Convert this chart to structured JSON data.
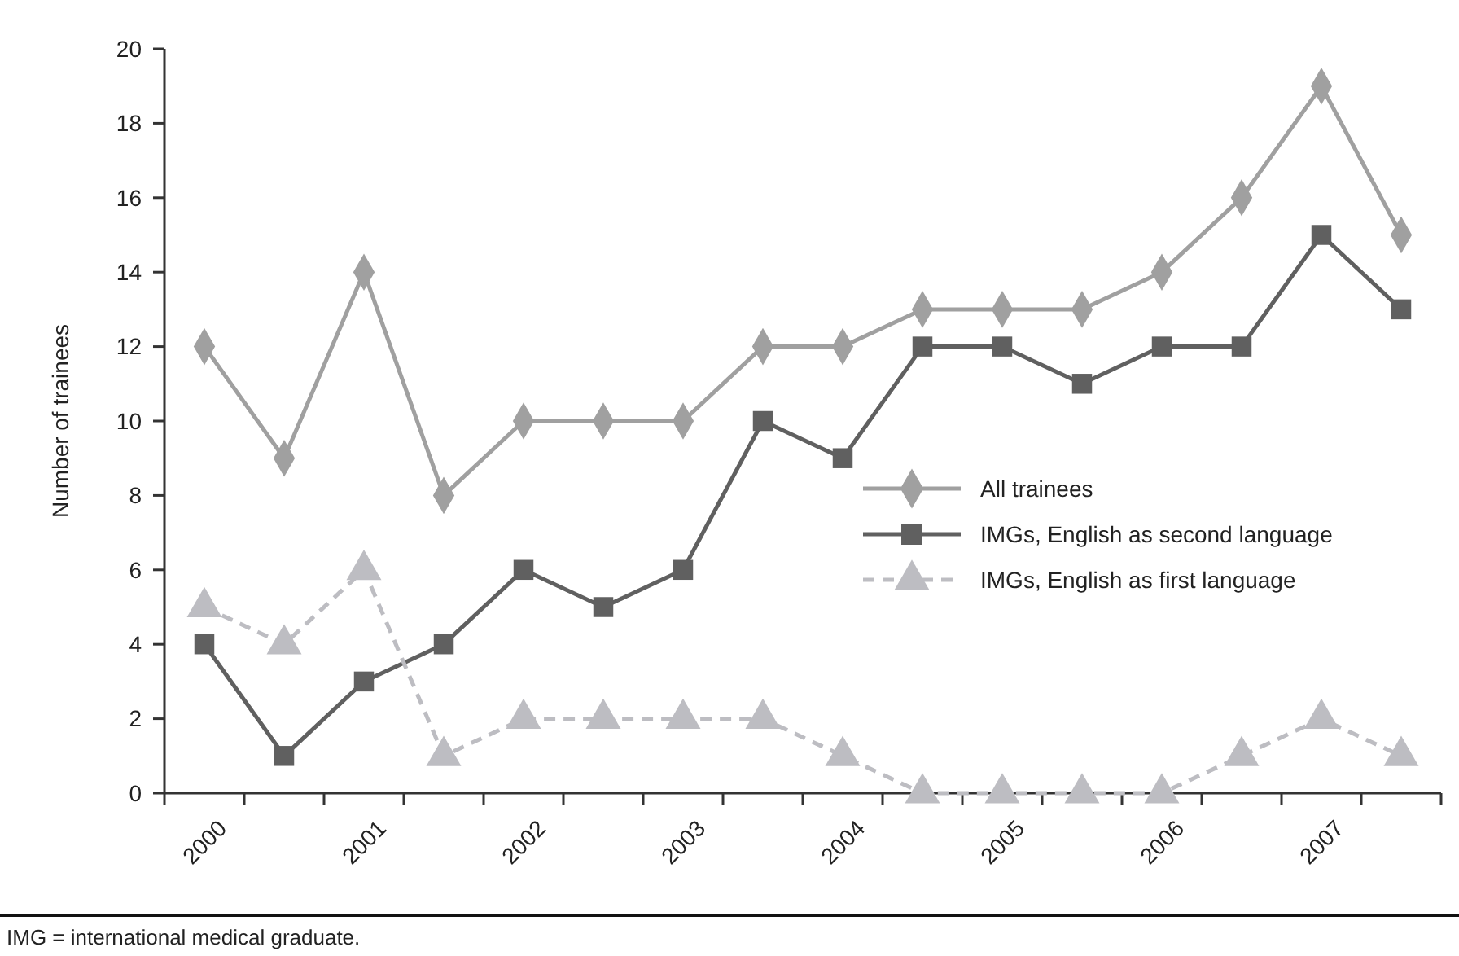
{
  "chart_data": {
    "type": "line",
    "ylabel": "Number of trainees",
    "categories": [
      "2000",
      null,
      "2001",
      null,
      "2002",
      null,
      "2003",
      null,
      "2004",
      null,
      "2005",
      null,
      "2006",
      null,
      "2007",
      null
    ],
    "series": [
      {
        "name": "All trainees",
        "color": "#a0a0a0",
        "marker": "diamond",
        "line_style": "solid",
        "values": [
          12,
          9,
          14,
          8,
          10,
          10,
          10,
          12,
          12,
          13,
          13,
          13,
          14,
          16,
          19,
          15
        ]
      },
      {
        "name": "IMGs, English as second language",
        "color": "#606060",
        "marker": "square",
        "line_style": "solid",
        "values": [
          4,
          1,
          3,
          4,
          6,
          5,
          6,
          10,
          9,
          12,
          12,
          11,
          12,
          12,
          15,
          13
        ]
      },
      {
        "name": "IMGs, English as first language",
        "color": "#bdbdc2",
        "marker": "triangle",
        "line_style": "dashed",
        "values": [
          5,
          4,
          6,
          1,
          2,
          2,
          2,
          2,
          1,
          0,
          0,
          0,
          0,
          1,
          2,
          1
        ]
      }
    ],
    "ylim": [
      0,
      20
    ],
    "yticks": [
      0,
      2,
      4,
      6,
      8,
      10,
      12,
      14,
      16,
      18,
      20
    ],
    "grid": false,
    "legend": "right",
    "annotations": [
      "IMG = international medical graduate."
    ]
  }
}
